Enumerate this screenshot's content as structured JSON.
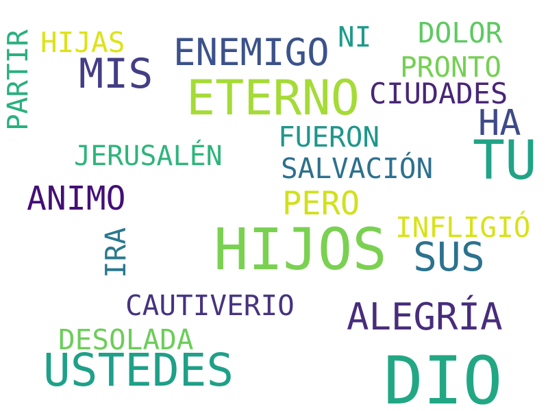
{
  "words": [
    {
      "text": "DIO",
      "color": "#22a784"
    },
    {
      "text": "HIJOS",
      "color": "#7ad151"
    },
    {
      "text": "TU",
      "color": "#20a386"
    },
    {
      "text": "ETERNO",
      "color": "#a5db36"
    },
    {
      "text": "USTEDES",
      "color": "#1fa088"
    },
    {
      "text": "MIS",
      "color": "#433e85"
    },
    {
      "text": "ENEMIGO",
      "color": "#3b528b"
    },
    {
      "text": "SUS",
      "color": "#2c728e"
    },
    {
      "text": "ALEGRÍA",
      "color": "#472d7b"
    },
    {
      "text": "HA",
      "color": "#3e4a89"
    },
    {
      "text": "ANIMO",
      "color": "#440f76"
    },
    {
      "text": "CIUDADES",
      "color": "#482677"
    },
    {
      "text": "PERO",
      "color": "#d0e11c"
    },
    {
      "text": "CAUTIVERIO",
      "color": "#46337f"
    },
    {
      "text": "FUERON",
      "color": "#1f968b"
    },
    {
      "text": "SALVACIÓN",
      "color": "#2d708e"
    },
    {
      "text": "INFLIGIÓ",
      "color": "#d8e219"
    },
    {
      "text": "JERUSALÉN",
      "color": "#2fb47c"
    },
    {
      "text": "PRONTO",
      "color": "#75d054"
    },
    {
      "text": "DOLOR",
      "color": "#5ec962"
    },
    {
      "text": "DESOLADA",
      "color": "#6ccd5a"
    },
    {
      "text": "HIJAS",
      "color": "#dde318"
    },
    {
      "text": "NI",
      "color": "#1e9b8a"
    },
    {
      "text": "PARTIR",
      "color": "#2ab07f"
    },
    {
      "text": "IRA",
      "color": "#2a788e"
    }
  ]
}
